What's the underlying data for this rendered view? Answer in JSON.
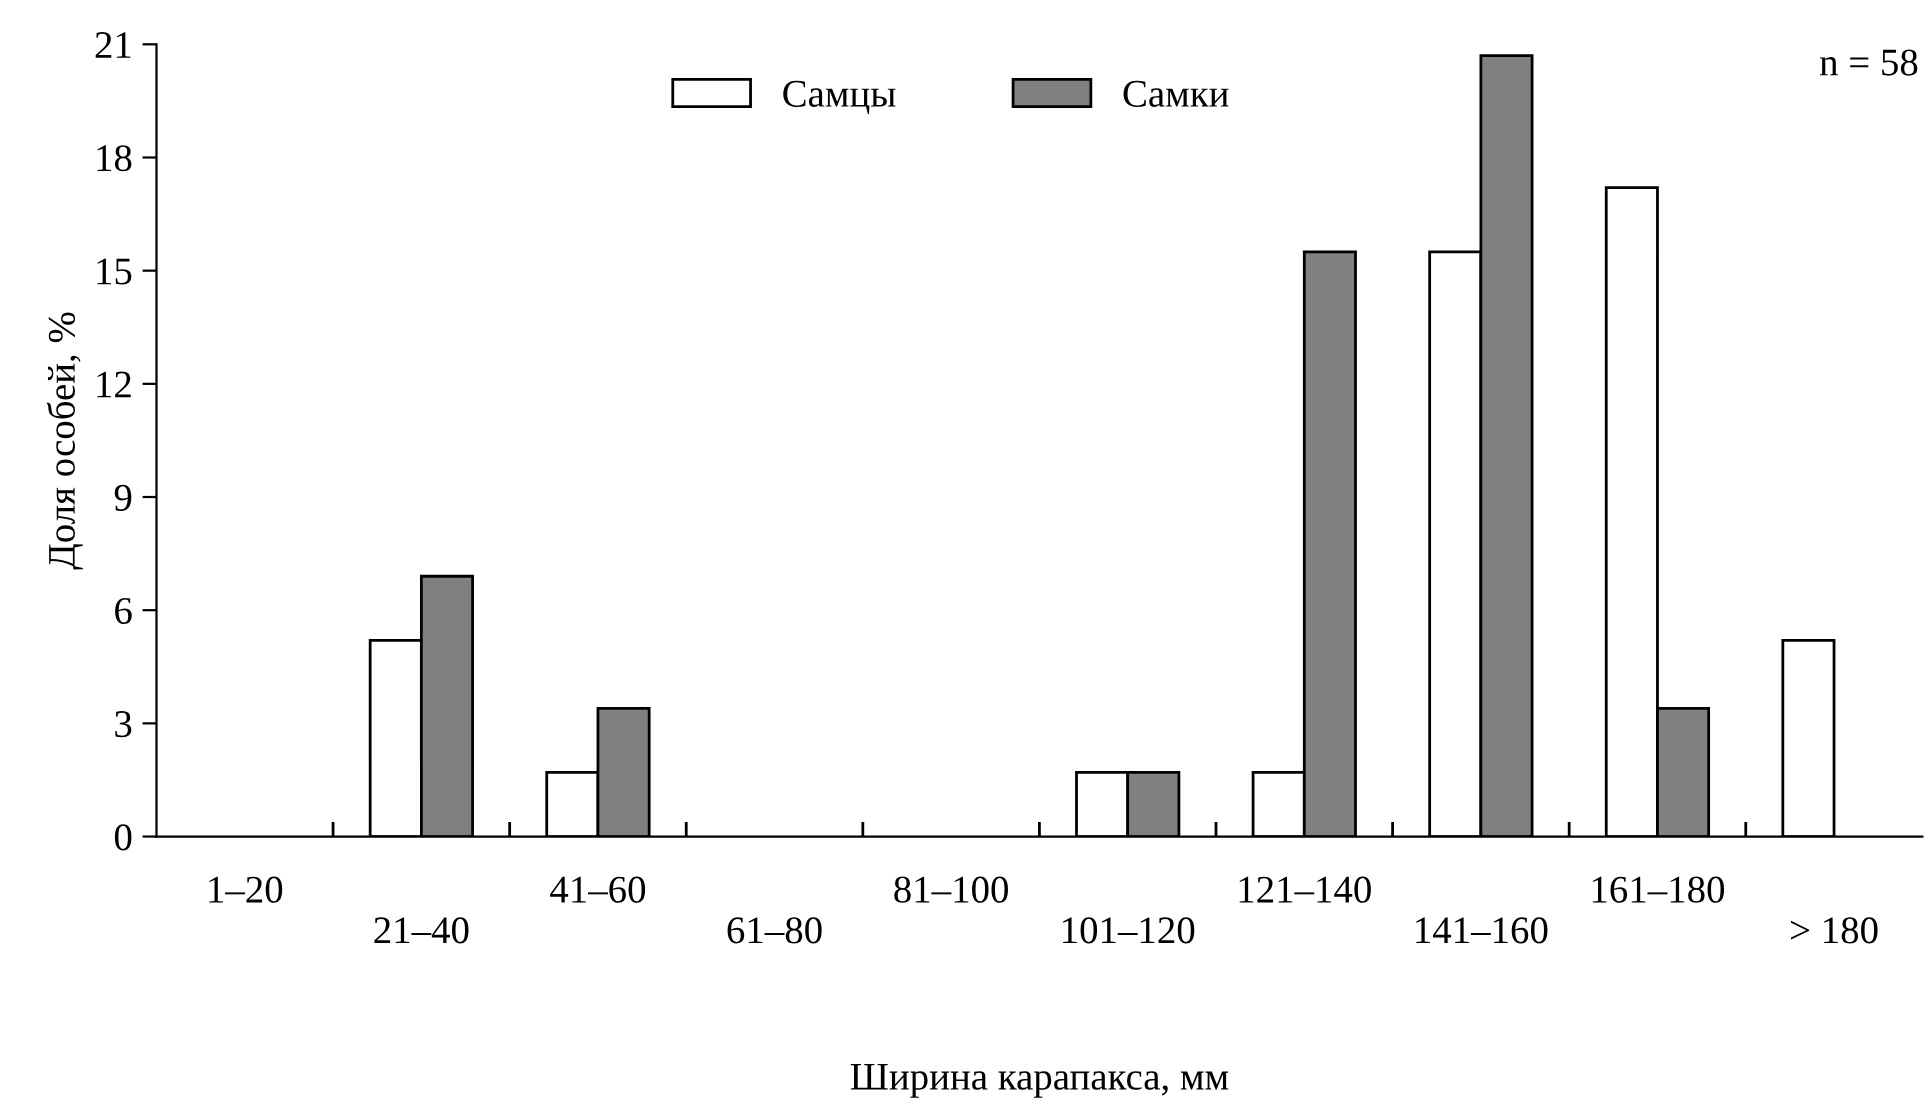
{
  "chart_data": {
    "type": "bar",
    "xlabel": "Ширина карапакса, мм",
    "ylabel": "Доля особей, %",
    "categories": [
      "1–20",
      "21–40",
      "41–60",
      "61–80",
      "81–100",
      "101–120",
      "121–140",
      "141–160",
      "161–180",
      "> 180"
    ],
    "series": [
      {
        "name": "Самцы",
        "color": "#ffffff",
        "values": [
          0,
          5.2,
          1.7,
          0,
          0,
          1.7,
          1.7,
          15.5,
          17.2,
          5.2
        ]
      },
      {
        "name": "Самки",
        "color": "#808080",
        "values": [
          0,
          6.9,
          3.4,
          0,
          0,
          1.7,
          15.5,
          20.7,
          3.4,
          0
        ]
      }
    ],
    "ylim": [
      0,
      21
    ],
    "yticks": [
      0,
      3,
      6,
      9,
      12,
      15,
      18,
      21
    ],
    "grid": false,
    "legend": "top",
    "annotations": [
      "n = 58"
    ]
  }
}
